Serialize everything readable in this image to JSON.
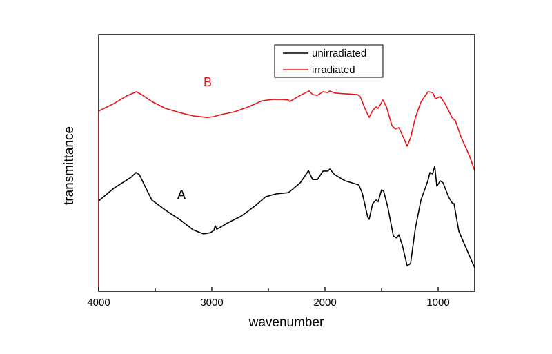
{
  "chart_data": {
    "type": "line",
    "title": "",
    "xlabel": "wavenumber",
    "ylabel": "transmittance",
    "xlim": [
      4000,
      677
    ],
    "x_reversed": true,
    "ylim": [
      0,
      100
    ],
    "y_ticks_shown": false,
    "grid": false,
    "x_ticks": [
      4000,
      3000,
      2000,
      1000
    ],
    "x_tick_labels": [
      "4000",
      "3000",
      "2000",
      "1000"
    ],
    "x_minor_ticks": [
      3500,
      2500,
      1500
    ],
    "legend": {
      "placement": "top-center",
      "entries": [
        "unirradiated",
        "irradiated"
      ]
    },
    "annotations": [
      {
        "text": "A",
        "x": 3300,
        "y": 38,
        "color": "#000000"
      },
      {
        "text": "B",
        "x": 3070,
        "y": 82,
        "color": "#e8141b"
      }
    ],
    "series": [
      {
        "name": "unirradiated",
        "color": "#000000",
        "x": [
          4000,
          3866,
          3713,
          3671,
          3640,
          3591,
          3530,
          3408,
          3286,
          3165,
          3073,
          3012,
          2982,
          2970,
          2957,
          2933,
          2860,
          2738,
          2616,
          2524,
          2433,
          2323,
          2219,
          2146,
          2110,
          2067,
          2018,
          1976,
          1957,
          1915,
          1823,
          1701,
          1671,
          1622,
          1610,
          1579,
          1549,
          1530,
          1500,
          1482,
          1445,
          1396,
          1366,
          1347,
          1317,
          1274,
          1244,
          1201,
          1152,
          1091,
          1073,
          1049,
          1030,
          1012,
          982,
          957,
          909,
          872,
          860,
          817,
          726,
          677
        ],
        "y": [
          35.2,
          40.1,
          44.4,
          46.2,
          45.4,
          40.9,
          35.5,
          31.5,
          28.0,
          23.9,
          22.3,
          22.8,
          23.7,
          25.5,
          24.2,
          24.7,
          26.6,
          29.3,
          33.3,
          36.8,
          37.9,
          38.4,
          42.2,
          47.0,
          43.5,
          43.5,
          46.8,
          46.8,
          47.6,
          45.4,
          43.0,
          41.4,
          38.2,
          28.8,
          28.0,
          34.1,
          35.5,
          34.9,
          39.5,
          39.0,
          32.8,
          21.5,
          20.7,
          22.0,
          18.0,
          9.9,
          10.8,
          24.7,
          35.5,
          43.0,
          46.2,
          45.7,
          48.7,
          40.9,
          43.0,
          42.2,
          36.8,
          34.1,
          34.1,
          23.4,
          14.0,
          9.1
        ]
      },
      {
        "name": "irradiated",
        "color": "#e8141b",
        "x": [
          4000,
          3866,
          3744,
          3665,
          3622,
          3530,
          3408,
          3286,
          3165,
          3043,
          2982,
          2921,
          2799,
          2677,
          2555,
          2463,
          2372,
          2323,
          2311,
          2219,
          2140,
          2110,
          2067,
          2018,
          1976,
          1957,
          1915,
          1823,
          1713,
          1689,
          1640,
          1610,
          1579,
          1549,
          1530,
          1488,
          1457,
          1408,
          1378,
          1347,
          1305,
          1274,
          1244,
          1201,
          1152,
          1091,
          1049,
          1024,
          982,
          939,
          878,
          848,
          799,
          726,
          677
        ],
        "y": [
          70.2,
          73.1,
          76.3,
          77.7,
          76.6,
          73.9,
          71.2,
          69.6,
          68.3,
          67.7,
          68.0,
          68.8,
          69.9,
          71.8,
          74.2,
          74.7,
          74.7,
          74.5,
          73.9,
          76.3,
          78.0,
          76.6,
          76.3,
          77.7,
          77.4,
          78.0,
          77.2,
          76.9,
          76.6,
          75.8,
          70.4,
          67.7,
          70.4,
          71.8,
          71.2,
          74.5,
          71.8,
          64.5,
          63.2,
          63.7,
          59.7,
          56.5,
          59.7,
          67.7,
          73.7,
          77.7,
          77.4,
          75.0,
          75.8,
          73.1,
          67.7,
          66.4,
          60.2,
          53.0,
          47.0
        ]
      }
    ]
  }
}
